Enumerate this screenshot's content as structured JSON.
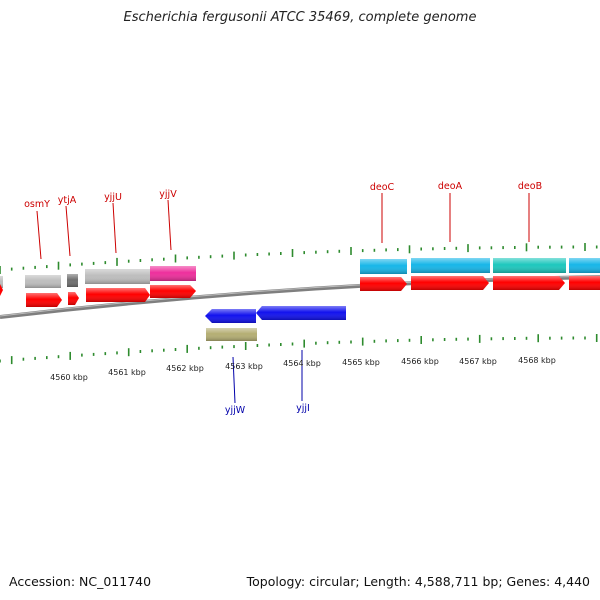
{
  "title": "Escherichia fergusonii ATCC 35469, complete genome",
  "footer": {
    "accession": "Accession: NC_011740",
    "summary": "Topology: circular; Length: 4,588,711 bp; Genes: 4,440"
  },
  "colors": {
    "cds": "#ff0000",
    "gene_grey": "#bdbdbd",
    "gene_dark": "#707070",
    "pink": "#ee2f9c",
    "cyan": "#17b6e8",
    "teal": "#1ec7bd",
    "blue": "#1212ee",
    "olive": "#b4ae73",
    "label_top": "#cc0000",
    "label_bottom": "#0000aa",
    "tick": "#2e8b2e",
    "backbone": "#808080"
  },
  "scale": {
    "labels": [
      "4560 kbp",
      "4561 kbp",
      "4562 kbp",
      "4563 kbp",
      "4564 kbp",
      "4565 kbp",
      "4566 kbp",
      "4567 kbp",
      "4568 kbp"
    ]
  },
  "genes_top": [
    "osmY",
    "ytjA",
    "yjjU",
    "yjjV",
    "deoC",
    "deoA",
    "deoB"
  ],
  "genes_bottom": [
    "yjjW",
    "yjjI"
  ]
}
